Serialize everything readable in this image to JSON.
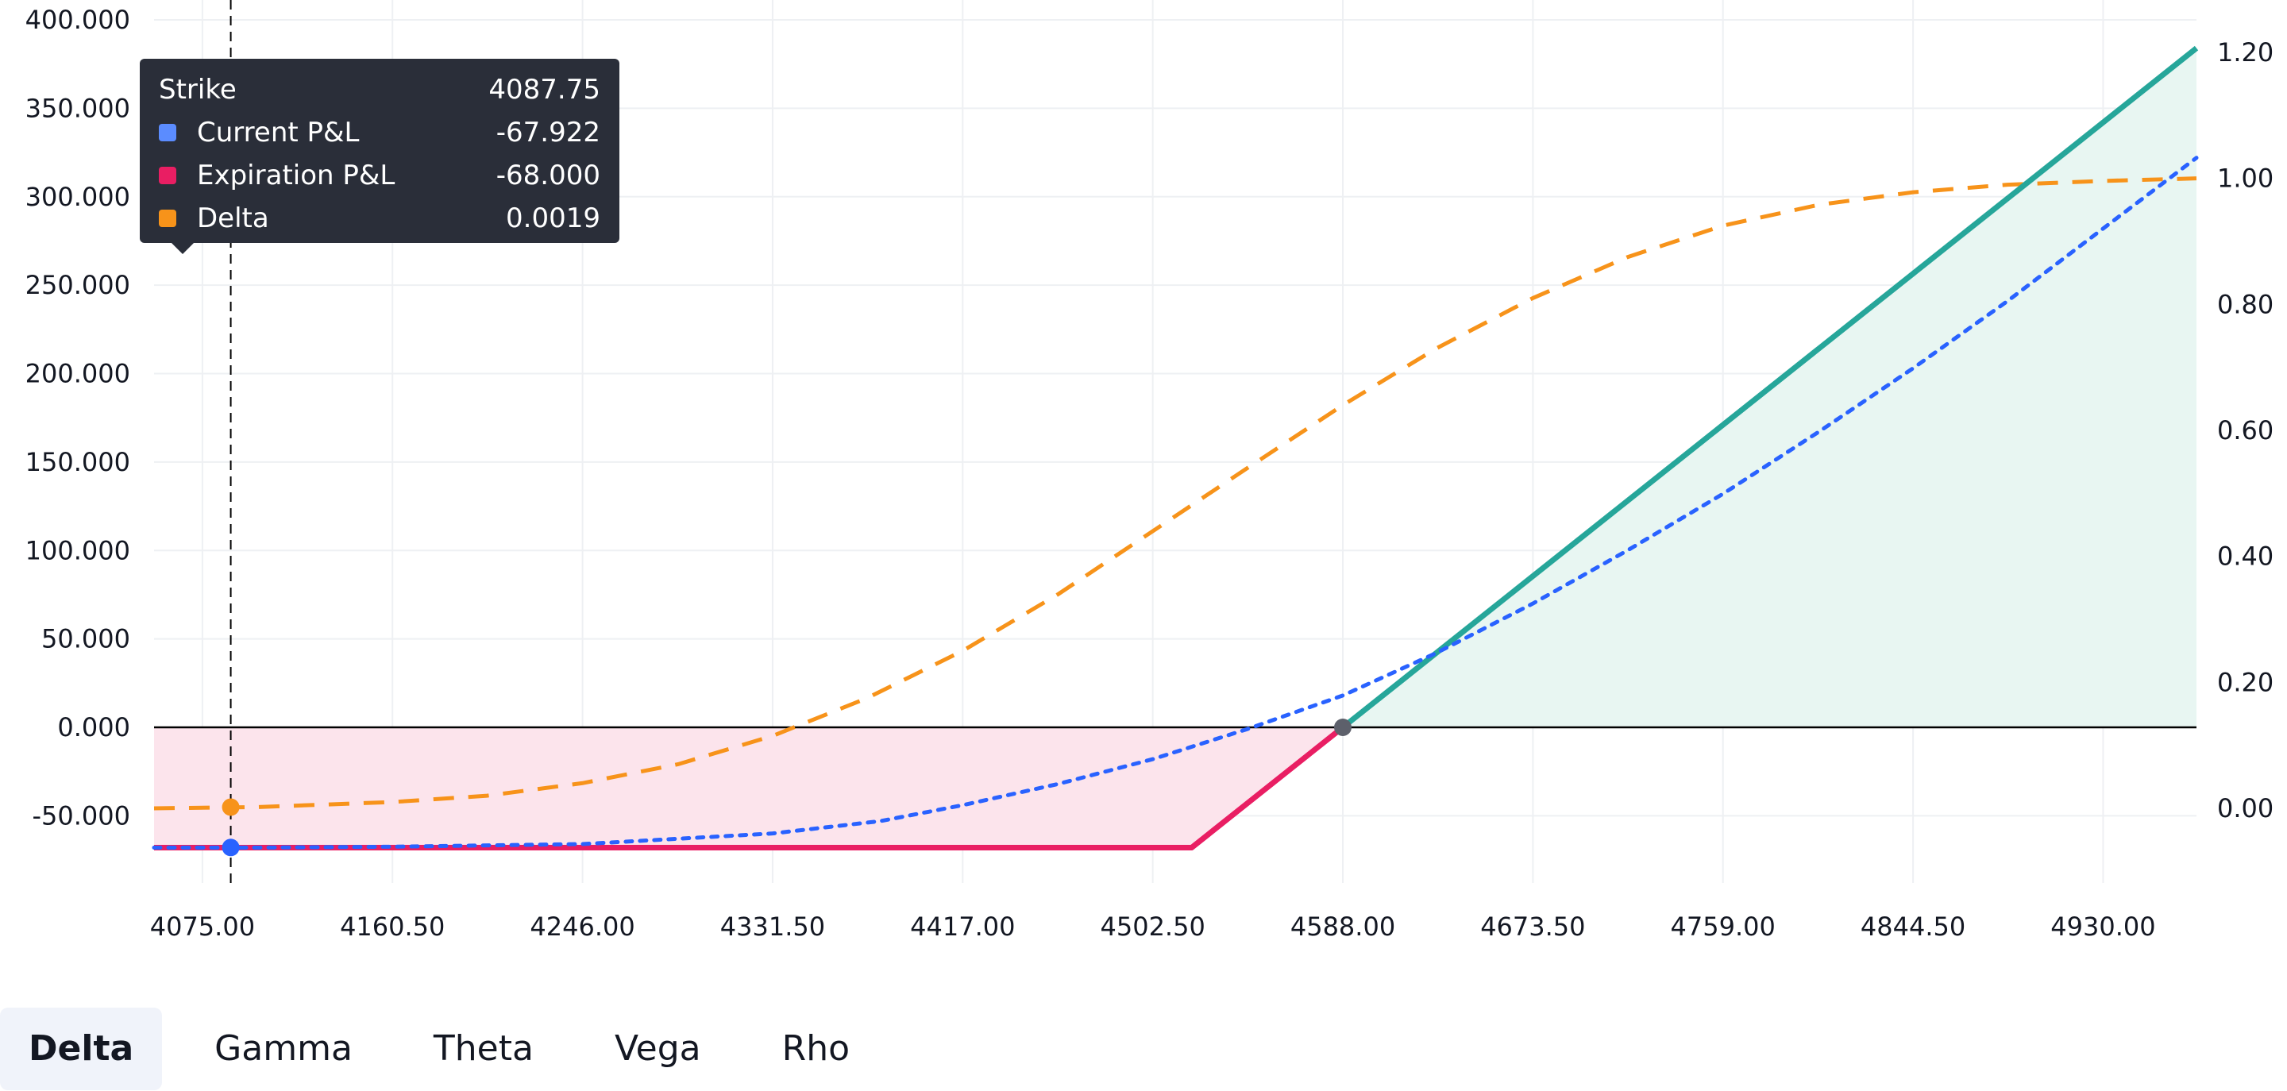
{
  "chart_data": {
    "type": "line",
    "x": [
      4053.25,
      4075.0,
      4087.75,
      4160.5,
      4246.0,
      4331.5,
      4417.0,
      4502.5,
      4530.0,
      4588.0,
      4673.5,
      4759.0,
      4844.5,
      4930.0,
      4972.0
    ],
    "x_ticks": [
      "4075.00",
      "4160.50",
      "4246.00",
      "4331.50",
      "4417.00",
      "4502.50",
      "4588.00",
      "4673.50",
      "4759.00",
      "4844.50",
      "4930.00"
    ],
    "x_tick_values": [
      4075.0,
      4160.5,
      4246.0,
      4331.5,
      4417.0,
      4502.5,
      4588.0,
      4673.5,
      4759.0,
      4844.5,
      4930.0
    ],
    "xlim": [
      4053.25,
      4972.0
    ],
    "y_left_ticks": [
      "400.000",
      "350.000",
      "300.000",
      "250.000",
      "200.000",
      "150.000",
      "100.000",
      "50.000",
      "0.000",
      "-50.000"
    ],
    "y_left_tick_values": [
      400,
      350,
      300,
      250,
      200,
      150,
      100,
      50,
      0,
      -50
    ],
    "ylim_left": [
      -100,
      410
    ],
    "y_right_ticks": [
      "1.20",
      "1.00",
      "0.80",
      "0.60",
      "0.40",
      "0.20",
      "0.00"
    ],
    "y_right_tick_values": [
      1.2,
      1.0,
      0.8,
      0.6,
      0.4,
      0.2,
      0.0
    ],
    "ylim_right": [
      -0.12,
      1.24
    ],
    "zero_line": 0,
    "series": [
      {
        "name": "Current P&L",
        "axis": "left",
        "color": "#2962ff",
        "style": "dotted",
        "x": [
          4053.25,
          4100,
          4160.5,
          4246,
          4331.5,
          4380,
          4417,
          4460,
          4502.5,
          4545,
          4588,
          4630,
          4673.5,
          4716,
          4759,
          4802,
          4844.5,
          4887,
          4930,
          4972
        ],
        "y": [
          -68,
          -68,
          -67.5,
          -66,
          -60,
          -53,
          -44,
          -32,
          -18,
          -1,
          18,
          42,
          70,
          100,
          132,
          167,
          203,
          241,
          282,
          322
        ]
      },
      {
        "name": "Expiration P&L",
        "axis": "left",
        "color": "#e91e63",
        "style": "solid",
        "x": [
          4053.25,
          4520,
          4588,
          4972
        ],
        "y": [
          -68,
          -68,
          0,
          384
        ]
      },
      {
        "name": "Delta",
        "axis": "right",
        "color": "#f7931a",
        "style": "dashed",
        "x": [
          4053.25,
          4100,
          4160.5,
          4203,
          4246,
          4289,
          4331.5,
          4374,
          4417,
          4460,
          4502.5,
          4545,
          4588,
          4630,
          4673.5,
          4716,
          4759,
          4802,
          4844.5,
          4887,
          4930,
          4972
        ],
        "y": [
          0.0,
          0.002,
          0.01,
          0.02,
          0.04,
          0.07,
          0.115,
          0.175,
          0.25,
          0.34,
          0.44,
          0.54,
          0.64,
          0.73,
          0.81,
          0.875,
          0.925,
          0.958,
          0.978,
          0.99,
          0.996,
          1.0
        ]
      }
    ],
    "crosshair_x": 4087.75,
    "breakeven": 4588.0
  },
  "tooltip": {
    "header_label": "Strike",
    "header_value": "4087.75",
    "rows": [
      {
        "label": "Current P&L",
        "value": "-67.922",
        "color": "#5b8cff"
      },
      {
        "label": "Expiration P&L",
        "value": "-68.000",
        "color": "#e91e63"
      },
      {
        "label": "Delta",
        "value": "0.0019",
        "color": "#f7931a"
      }
    ]
  },
  "colors": {
    "profit_fill": "#e8f6f2",
    "profit_line": "#26a69a",
    "loss_fill": "#fce4ec",
    "grid": "#eef0f3",
    "axis_line": "#000000",
    "crosshair": "#000000",
    "breakeven_dot": "#5d606b"
  },
  "tabs": [
    {
      "label": "Delta",
      "active": true
    },
    {
      "label": "Gamma",
      "active": false
    },
    {
      "label": "Theta",
      "active": false
    },
    {
      "label": "Vega",
      "active": false
    },
    {
      "label": "Rho",
      "active": false
    }
  ]
}
